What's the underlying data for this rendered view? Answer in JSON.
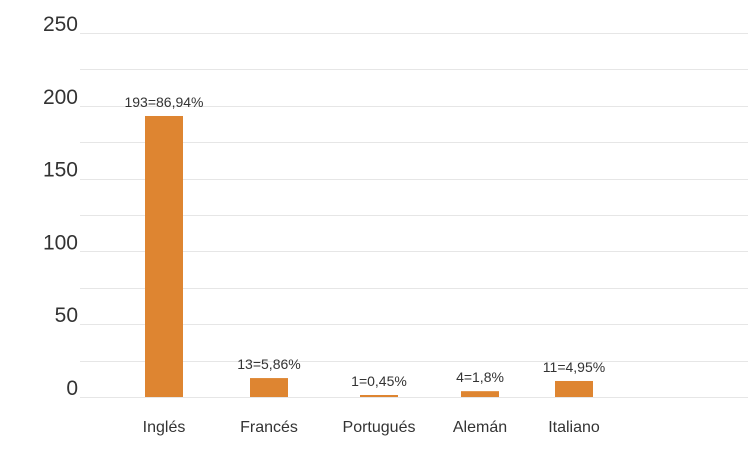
{
  "chart_data": {
    "type": "bar",
    "title": "",
    "xlabel": "",
    "ylabel": "",
    "categories": [
      "Inglés",
      "Francés",
      "Portugués",
      "Alemán",
      "Italiano"
    ],
    "values": [
      193,
      13,
      1,
      4,
      11
    ],
    "data_labels": [
      "193=86,94%",
      "13=5,86%",
      "1=0,45%",
      "4=1,8%",
      "11=4,95%"
    ],
    "ylim": [
      0,
      250
    ],
    "yticks": [
      0,
      50,
      100,
      150,
      200,
      250
    ],
    "grid": true,
    "legend": "none",
    "bar_color": "#de8531"
  }
}
